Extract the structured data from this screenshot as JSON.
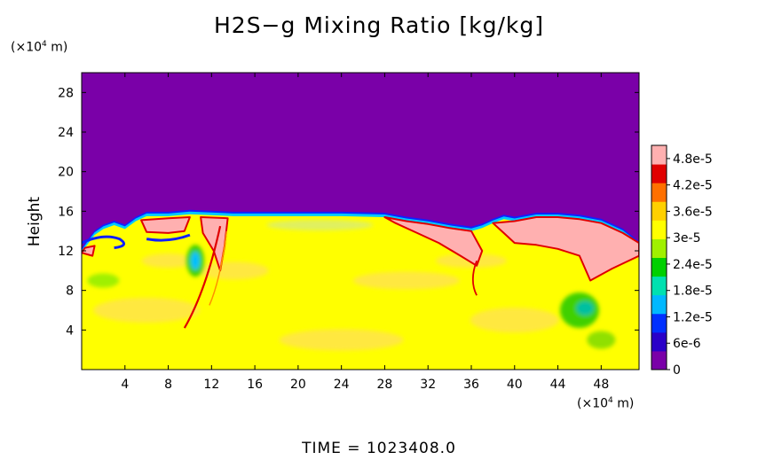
{
  "chart_data": {
    "type": "heatmap",
    "title": "H2S−g Mixing Ratio [kg/kg]",
    "ylabel": "Height",
    "x_unit": "(×10",
    "x_unit_exp": "4",
    "x_unit_tail": " m)",
    "y_unit": "(×10",
    "y_unit_exp": "4",
    "y_unit_tail": " m)",
    "xlim": [
      0,
      51.5
    ],
    "ylim": [
      0,
      30
    ],
    "x_ticks": [
      4,
      8,
      12,
      16,
      20,
      24,
      28,
      32,
      36,
      40,
      44,
      48
    ],
    "y_ticks": [
      4,
      8,
      12,
      16,
      20,
      24,
      28
    ],
    "colorbar": {
      "labels": [
        "4.8e-5",
        "4.2e-5",
        "3.6e-5",
        "3e-5",
        "2.4e-5",
        "1.8e-5",
        "1.2e-5",
        "6e-6",
        "0"
      ],
      "range": [
        0,
        5.1e-05
      ],
      "colors": [
        "#7a00a8",
        "#2a00c8",
        "#0030ff",
        "#00b8ff",
        "#00e0b0",
        "#00d000",
        "#a0f000",
        "#ffff00",
        "#ffd000",
        "#ff7000",
        "#e00000",
        "#ffb0b0"
      ]
    },
    "colors": {
      "top_layer": "#7a00a8",
      "bulk": "#ffff00",
      "bulk_shade": "#ffe840",
      "rich": "#ffb0b0",
      "edge_red": "#e00000",
      "edge_cyan": "#00c8ff",
      "edge_blue": "#1020ff",
      "green": "#40d000"
    }
  },
  "footer": {
    "time_label": "TIME  =  1023408.0"
  }
}
